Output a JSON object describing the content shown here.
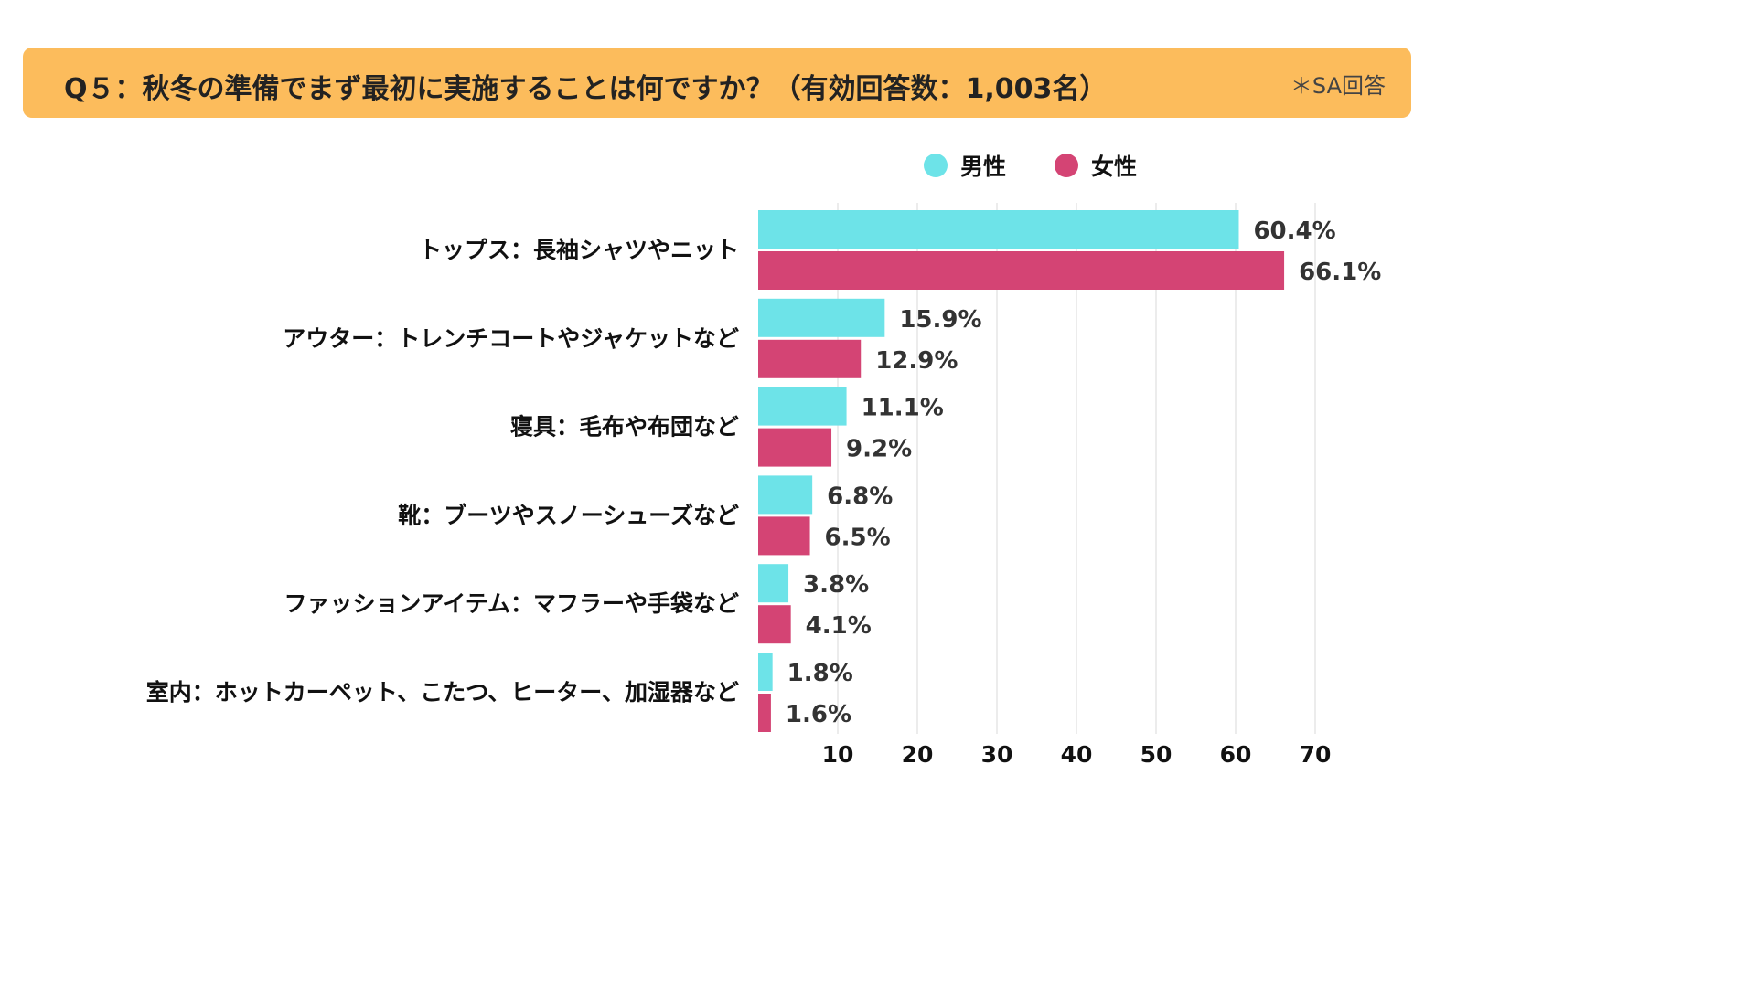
{
  "header": {
    "title": "Q５：秋冬の準備でまず最初に実施することは何ですか？（有効回答数：1,003名）",
    "note": "＊SA回答"
  },
  "colors": {
    "banner": "#fcbc5c",
    "male": "#6de3e8",
    "female": "#d44474",
    "grid": "#d9d9d9"
  },
  "chart_data": {
    "type": "bar",
    "orientation": "horizontal",
    "categories": [
      "トップス：長袖シャツやニット",
      "アウター：トレンチコートやジャケットなど",
      "寝具：毛布や布団など",
      "靴：ブーツやスノーシューズなど",
      "ファッションアイテム：マフラーや手袋など",
      "室内：ホットカーペット、こたつ、ヒーター、加湿器など"
    ],
    "series": [
      {
        "name": "男性",
        "values": [
          60.4,
          15.9,
          11.1,
          6.8,
          3.8,
          1.8
        ],
        "labels": [
          "60.4%",
          "15.9%",
          "11.1%",
          "6.8%",
          "3.8%",
          "1.8%"
        ]
      },
      {
        "name": "女性",
        "values": [
          66.1,
          12.9,
          9.2,
          6.5,
          4.1,
          1.6
        ],
        "labels": [
          "66.1%",
          "12.9%",
          "9.2%",
          "6.5%",
          "4.1%",
          "1.6%"
        ]
      }
    ],
    "xlim": [
      0,
      70
    ],
    "xticks": [
      10,
      20,
      30,
      40,
      50,
      60,
      70
    ],
    "xtick_labels": [
      "10",
      "20",
      "30",
      "40",
      "50",
      "60",
      "70"
    ],
    "grid": true,
    "legend_position": "top"
  }
}
